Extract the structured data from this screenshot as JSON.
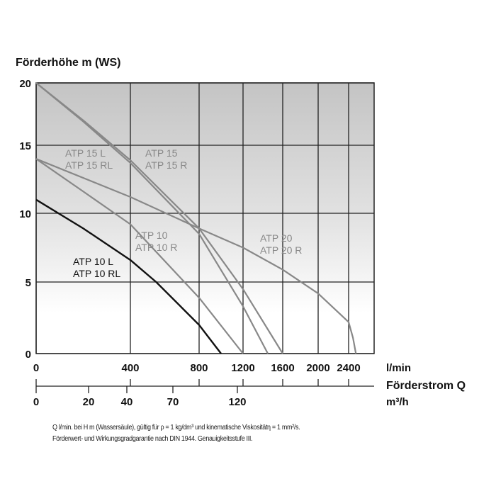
{
  "chart_data": {
    "type": "line",
    "title": "",
    "ylabel": "Förderhöhe m (WS)",
    "xlabel": "Förderstrom Q",
    "x_unit": "l/min",
    "x2_unit": "m³/h",
    "ylim": [
      0,
      20
    ],
    "yticks": [
      "0",
      "5",
      "10",
      "15",
      "20"
    ],
    "xticks": [
      "0",
      "400",
      "800",
      "1200",
      "1600",
      "2000",
      "2400"
    ],
    "x2ticks": [
      "0",
      "20",
      "40",
      "70",
      "120"
    ],
    "x_scale": "non-linear",
    "grid": true,
    "background": "gradient gray to white",
    "series": [
      {
        "name": "ATP 10 L / ATP 10 RL",
        "color": "#111111",
        "points": [
          [
            0,
            11
          ],
          [
            200,
            8.9
          ],
          [
            400,
            6.6
          ],
          [
            550,
            5
          ],
          [
            700,
            3.2
          ],
          [
            800,
            2.0
          ],
          [
            1000,
            0
          ]
        ]
      },
      {
        "name": "ATP 10 / ATP 10 R",
        "color": "#888888",
        "points": [
          [
            0,
            14
          ],
          [
            200,
            11.6
          ],
          [
            400,
            9.2
          ],
          [
            800,
            3.9
          ],
          [
            1200,
            0
          ]
        ]
      },
      {
        "name": "ATP 15 L / ATP 15 RL",
        "color": "#888888",
        "points": [
          [
            0,
            20
          ],
          [
            200,
            16.9
          ],
          [
            400,
            13.7
          ],
          [
            800,
            8.5
          ],
          [
            1200,
            3.3
          ],
          [
            1450,
            0
          ]
        ]
      },
      {
        "name": "ATP 15 / ATP 15 R",
        "color": "#888888",
        "points": [
          [
            0,
            20
          ],
          [
            200,
            17.0
          ],
          [
            400,
            13.9
          ],
          [
            800,
            8.9
          ],
          [
            1200,
            4.5
          ],
          [
            1600,
            0
          ]
        ]
      },
      {
        "name": "ATP 20 / ATP 20 R",
        "color": "#888888",
        "points": [
          [
            0,
            14
          ],
          [
            400,
            11.2
          ],
          [
            800,
            8.9
          ],
          [
            1200,
            7.5
          ],
          [
            1600,
            5.9
          ],
          [
            2000,
            4.2
          ],
          [
            2400,
            2.2
          ],
          [
            2460,
            1.1
          ],
          [
            2500,
            0
          ]
        ]
      }
    ],
    "annotations": [
      {
        "lines": [
          "ATP 15 L",
          "ATP 15 RL"
        ],
        "color": "#888888"
      },
      {
        "lines": [
          "ATP 15",
          "ATP 15 R"
        ],
        "color": "#888888"
      },
      {
        "lines": [
          "ATP 10",
          "ATP 10 R"
        ],
        "color": "#888888"
      },
      {
        "lines": [
          "ATP 20",
          "ATP 20 R"
        ],
        "color": "#888888"
      },
      {
        "lines": [
          "ATP 10 L",
          "ATP 10 RL"
        ],
        "color": "#111111"
      }
    ]
  },
  "footnote": {
    "line1": "Q l/min. bei H m (Wassersäule), gültig für ρ = 1 kg/dm³ und kinematische Viskositätη = 1 mm²/s.",
    "line2": "Förderwert- und Wirkungsgradgarantie nach DIN 1944. Genauigkeitsstufe III."
  }
}
